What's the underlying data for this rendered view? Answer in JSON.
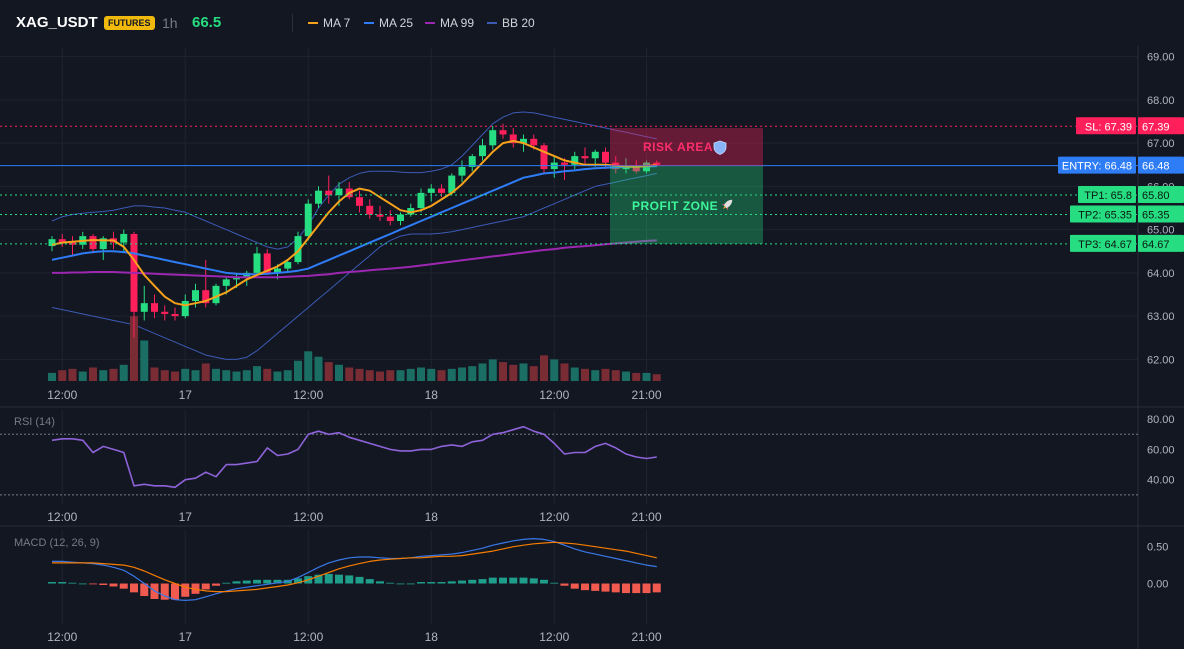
{
  "header": {
    "symbol": "XAG_USDT",
    "market_badge": "FUTURES",
    "interval": "1h",
    "last_price": "66.5",
    "legend": [
      {
        "label": "MA 7",
        "color": "#f7a21b"
      },
      {
        "label": "MA 25",
        "color": "#2e7cf6"
      },
      {
        "label": "MA 99",
        "color": "#9c27b0"
      },
      {
        "label": "BB 20",
        "color": "#3b5bb5"
      }
    ]
  },
  "colors": {
    "up": "#26de81",
    "down": "#ff1f5a",
    "vol_up": "#1a6e63",
    "vol_down": "#7a2c35",
    "ma7": "#f7a21b",
    "ma25": "#2e7cf6",
    "ma99": "#9c27b0",
    "bb": "#3b5bb5",
    "rsi": "#8e63d9",
    "macd": "#3a78e8",
    "signal": "#f57c00",
    "hist_up": "#1f9e8c",
    "hist_down": "#f05a4f",
    "sl": "#ff1f5a",
    "entry": "#2e7cf6",
    "tp": "#26de81"
  },
  "x_axis": {
    "ticks": [
      {
        "label": "12:00",
        "bar": -3
      },
      {
        "label": "17",
        "bar": 9
      },
      {
        "label": "12:00",
        "bar": 21
      },
      {
        "label": "18",
        "bar": 33
      },
      {
        "label": "12:00",
        "bar": 45
      },
      {
        "label": "21:00",
        "bar": 54
      }
    ]
  },
  "price_axis": {
    "ticks": [
      "69.00",
      "68.00",
      "67.00",
      "66.00",
      "65.00",
      "64.00",
      "63.00",
      "62.00"
    ],
    "range": [
      61.5,
      69.2
    ]
  },
  "chart_data": [
    {
      "type": "candlestick",
      "pane": "price",
      "x": [
        -4,
        -3,
        -2,
        -1,
        0,
        1,
        2,
        3,
        4,
        5,
        6,
        7,
        8,
        9,
        10,
        11,
        12,
        13,
        14,
        15,
        16,
        17,
        18,
        19,
        20,
        21,
        22,
        23,
        24,
        25,
        26,
        27,
        28,
        29,
        30,
        31,
        32,
        33,
        34,
        35,
        36,
        37,
        38,
        39,
        40,
        41,
        42,
        43,
        44,
        45,
        46,
        47,
        48,
        49,
        50,
        51,
        52,
        53,
        54,
        55
      ],
      "ohlc": [
        [
          64.62,
          64.85,
          64.5,
          64.78
        ],
        [
          64.78,
          64.9,
          64.6,
          64.7
        ],
        [
          64.7,
          64.85,
          64.4,
          64.65
        ],
        [
          64.65,
          64.95,
          64.55,
          64.85
        ],
        [
          64.85,
          64.9,
          64.45,
          64.55
        ],
        [
          64.55,
          64.85,
          64.3,
          64.8
        ],
        [
          64.8,
          64.95,
          64.55,
          64.7
        ],
        [
          64.7,
          65.0,
          64.5,
          64.9
        ],
        [
          64.9,
          64.95,
          62.5,
          63.1
        ],
        [
          63.1,
          63.7,
          62.9,
          63.3
        ],
        [
          63.3,
          63.5,
          62.95,
          63.1
        ],
        [
          63.1,
          63.25,
          62.9,
          63.05
        ],
        [
          63.05,
          63.2,
          62.9,
          63.0
        ],
        [
          63.0,
          63.5,
          62.95,
          63.35
        ],
        [
          63.35,
          63.75,
          63.2,
          63.6
        ],
        [
          63.6,
          64.3,
          63.2,
          63.3
        ],
        [
          63.3,
          63.75,
          63.25,
          63.7
        ],
        [
          63.7,
          63.9,
          63.5,
          63.85
        ],
        [
          63.85,
          64.0,
          63.65,
          63.9
        ],
        [
          63.9,
          64.05,
          63.7,
          64.0
        ],
        [
          64.0,
          64.6,
          63.95,
          64.45
        ],
        [
          64.45,
          64.55,
          63.95,
          64.0
        ],
        [
          64.0,
          64.2,
          63.85,
          64.1
        ],
        [
          64.1,
          64.3,
          64.0,
          64.25
        ],
        [
          64.25,
          64.95,
          64.2,
          64.85
        ],
        [
          64.85,
          65.7,
          64.75,
          65.6
        ],
        [
          65.6,
          66.0,
          65.5,
          65.9
        ],
        [
          65.9,
          66.25,
          65.6,
          65.8
        ],
        [
          65.8,
          66.1,
          65.55,
          65.95
        ],
        [
          65.95,
          66.1,
          65.7,
          65.75
        ],
        [
          65.75,
          65.9,
          65.4,
          65.55
        ],
        [
          65.55,
          65.7,
          65.25,
          65.35
        ],
        [
          65.35,
          65.55,
          65.2,
          65.3
        ],
        [
          65.3,
          65.45,
          65.1,
          65.2
        ],
        [
          65.2,
          65.4,
          65.1,
          65.35
        ],
        [
          65.35,
          65.6,
          65.3,
          65.5
        ],
        [
          65.5,
          65.95,
          65.4,
          65.85
        ],
        [
          65.85,
          66.05,
          65.65,
          65.95
        ],
        [
          65.95,
          66.05,
          65.75,
          65.85
        ],
        [
          65.85,
          66.3,
          65.8,
          66.25
        ],
        [
          66.25,
          66.6,
          66.1,
          66.45
        ],
        [
          66.45,
          66.75,
          66.35,
          66.7
        ],
        [
          66.7,
          67.1,
          66.6,
          66.95
        ],
        [
          66.95,
          67.4,
          66.85,
          67.3
        ],
        [
          67.3,
          67.45,
          67.1,
          67.2
        ],
        [
          67.2,
          67.35,
          66.9,
          67.0
        ],
        [
          67.0,
          67.2,
          66.8,
          67.1
        ],
        [
          67.1,
          67.2,
          66.85,
          66.95
        ],
        [
          66.95,
          67.0,
          66.3,
          66.4
        ],
        [
          66.4,
          66.7,
          66.2,
          66.55
        ],
        [
          66.55,
          66.65,
          66.15,
          66.5
        ],
        [
          66.5,
          66.8,
          66.4,
          66.7
        ],
        [
          66.7,
          66.9,
          66.5,
          66.65
        ],
        [
          66.65,
          66.85,
          66.45,
          66.8
        ],
        [
          66.8,
          66.9,
          66.4,
          66.55
        ],
        [
          66.55,
          66.7,
          66.3,
          66.4
        ],
        [
          66.4,
          66.65,
          66.3,
          66.45
        ],
        [
          66.45,
          66.6,
          66.3,
          66.35
        ],
        [
          66.35,
          66.6,
          66.3,
          66.55
        ],
        [
          66.55,
          66.6,
          66.45,
          66.5
        ]
      ],
      "volume": [
        0.6,
        0.8,
        0.9,
        0.7,
        1.0,
        0.8,
        0.9,
        1.2,
        4.8,
        3.0,
        1.0,
        0.8,
        0.7,
        0.9,
        0.8,
        1.3,
        0.9,
        0.8,
        0.7,
        0.8,
        1.1,
        0.9,
        0.7,
        0.8,
        1.5,
        2.2,
        1.8,
        1.4,
        1.2,
        1.0,
        0.9,
        0.8,
        0.7,
        0.8,
        0.8,
        0.9,
        1.0,
        0.9,
        0.8,
        0.9,
        1.0,
        1.1,
        1.3,
        1.6,
        1.4,
        1.2,
        1.3,
        1.1,
        1.9,
        1.6,
        1.3,
        1.0,
        0.9,
        0.8,
        0.9,
        0.8,
        0.7,
        0.6,
        0.6,
        0.5
      ],
      "ma7": [
        64.65,
        64.7,
        64.72,
        64.74,
        64.76,
        64.75,
        64.75,
        64.6,
        64.3,
        63.95,
        63.7,
        63.45,
        63.3,
        63.25,
        63.3,
        63.35,
        63.45,
        63.55,
        63.7,
        63.85,
        63.95,
        64.05,
        64.15,
        64.3,
        64.5,
        64.8,
        65.1,
        65.4,
        65.65,
        65.85,
        65.95,
        65.9,
        65.75,
        65.6,
        65.45,
        65.4,
        65.45,
        65.55,
        65.7,
        65.85,
        66.05,
        66.3,
        66.55,
        66.8,
        67.0,
        67.05,
        67.0,
        66.9,
        66.8,
        66.7,
        66.6,
        66.55,
        66.5,
        66.5,
        66.5,
        66.48,
        66.46,
        66.45,
        66.47,
        66.5
      ],
      "ma25": [
        64.3,
        64.35,
        64.4,
        64.45,
        64.48,
        64.5,
        64.5,
        64.48,
        64.45,
        64.4,
        64.35,
        64.3,
        64.25,
        64.2,
        64.15,
        64.1,
        64.05,
        64.0,
        63.98,
        63.97,
        63.97,
        63.98,
        64.0,
        64.02,
        64.05,
        64.1,
        64.2,
        64.3,
        64.4,
        64.5,
        64.6,
        64.7,
        64.8,
        64.9,
        65.0,
        65.1,
        65.2,
        65.3,
        65.4,
        65.5,
        65.6,
        65.7,
        65.8,
        65.9,
        66.0,
        66.1,
        66.2,
        66.25,
        66.3,
        66.32,
        66.35,
        66.37,
        66.4,
        66.42,
        66.43,
        66.44,
        66.45,
        66.46,
        66.46,
        66.47
      ],
      "ma99": [
        64.0,
        64.0,
        64.01,
        64.01,
        64.02,
        64.02,
        64.02,
        64.01,
        64.0,
        63.99,
        63.98,
        63.97,
        63.96,
        63.95,
        63.94,
        63.93,
        63.92,
        63.91,
        63.9,
        63.9,
        63.9,
        63.9,
        63.9,
        63.91,
        63.92,
        63.93,
        63.95,
        63.97,
        64.0,
        64.02,
        64.04,
        64.06,
        64.08,
        64.1,
        64.12,
        64.14,
        64.17,
        64.2,
        64.23,
        64.26,
        64.29,
        64.32,
        64.35,
        64.38,
        64.41,
        64.44,
        64.47,
        64.5,
        64.53,
        64.55,
        64.58,
        64.6,
        64.62,
        64.64,
        64.66,
        64.68,
        64.7,
        64.72,
        64.74,
        64.75
      ],
      "bb_upper": [
        65.2,
        65.3,
        65.35,
        65.38,
        65.4,
        65.42,
        65.45,
        65.5,
        65.55,
        65.55,
        65.52,
        65.5,
        65.45,
        65.4,
        65.3,
        65.2,
        65.1,
        65.0,
        64.9,
        64.8,
        64.7,
        64.6,
        64.55,
        64.6,
        64.8,
        65.1,
        65.5,
        65.8,
        66.05,
        66.2,
        66.3,
        66.35,
        66.35,
        66.35,
        66.33,
        66.32,
        66.32,
        66.35,
        66.4,
        66.5,
        66.7,
        66.95,
        67.2,
        67.45,
        67.6,
        67.7,
        67.72,
        67.7,
        67.65,
        67.6,
        67.55,
        67.5,
        67.45,
        67.4,
        67.35,
        67.3,
        67.25,
        67.2,
        67.15,
        67.1
      ],
      "bb_lower": [
        63.2,
        63.15,
        63.1,
        63.05,
        63.0,
        62.95,
        62.9,
        62.85,
        62.8,
        62.7,
        62.6,
        62.5,
        62.4,
        62.3,
        62.2,
        62.1,
        62.05,
        62.0,
        62.0,
        62.05,
        62.2,
        62.4,
        62.6,
        62.8,
        63.0,
        63.2,
        63.4,
        63.6,
        63.8,
        64.0,
        64.2,
        64.4,
        64.6,
        64.75,
        64.85,
        64.9,
        64.9,
        64.9,
        64.92,
        64.95,
        65.0,
        65.05,
        65.1,
        65.15,
        65.2,
        65.25,
        65.3,
        65.4,
        65.5,
        65.6,
        65.7,
        65.8,
        65.9,
        66.0,
        66.05,
        66.1,
        66.15,
        66.2,
        66.25,
        66.3
      ]
    },
    {
      "type": "line",
      "pane": "rsi",
      "title": "RSI (14)",
      "y_ticks": [
        "80.00",
        "60.00",
        "40.00"
      ],
      "levels": [
        70,
        30
      ],
      "ylim": [
        24,
        86
      ],
      "x_start": -4,
      "values": [
        66,
        67,
        67,
        66,
        58,
        62,
        60,
        58,
        36,
        37,
        36,
        36,
        35,
        40,
        41,
        45,
        42,
        50,
        50,
        51,
        52,
        61,
        56,
        57,
        60,
        70,
        72,
        70,
        71,
        68,
        66,
        64,
        62,
        60,
        59,
        59,
        60,
        60,
        62,
        63,
        62,
        65,
        66,
        70,
        71,
        73,
        75,
        72,
        70,
        64,
        57,
        58,
        58,
        62,
        64,
        61,
        57,
        55,
        54,
        55
      ]
    },
    {
      "type": "line",
      "pane": "macd",
      "title": "MACD (12, 26, 9)",
      "y_ticks": [
        "0.50",
        "0.00"
      ],
      "ylim": [
        -0.55,
        0.7
      ],
      "x_start": -4,
      "macd": [
        0.3,
        0.3,
        0.29,
        0.28,
        0.27,
        0.25,
        0.22,
        0.18,
        0.1,
        0.0,
        -0.1,
        -0.17,
        -0.22,
        -0.23,
        -0.22,
        -0.18,
        -0.14,
        -0.1,
        -0.07,
        -0.05,
        -0.03,
        -0.01,
        0.01,
        0.03,
        0.08,
        0.15,
        0.22,
        0.28,
        0.32,
        0.35,
        0.36,
        0.36,
        0.35,
        0.34,
        0.34,
        0.35,
        0.37,
        0.38,
        0.39,
        0.4,
        0.42,
        0.45,
        0.48,
        0.52,
        0.55,
        0.58,
        0.6,
        0.61,
        0.6,
        0.57,
        0.52,
        0.47,
        0.43,
        0.4,
        0.37,
        0.34,
        0.31,
        0.28,
        0.25,
        0.23
      ],
      "signal": [
        0.28,
        0.28,
        0.28,
        0.28,
        0.28,
        0.27,
        0.26,
        0.25,
        0.22,
        0.17,
        0.11,
        0.05,
        0.0,
        -0.05,
        -0.08,
        -0.1,
        -0.11,
        -0.11,
        -0.1,
        -0.09,
        -0.08,
        -0.06,
        -0.04,
        -0.02,
        0.01,
        0.05,
        0.1,
        0.15,
        0.2,
        0.24,
        0.27,
        0.3,
        0.32,
        0.33,
        0.34,
        0.35,
        0.35,
        0.36,
        0.37,
        0.37,
        0.38,
        0.4,
        0.42,
        0.44,
        0.47,
        0.5,
        0.52,
        0.54,
        0.55,
        0.56,
        0.55,
        0.54,
        0.52,
        0.5,
        0.48,
        0.46,
        0.44,
        0.41,
        0.38,
        0.35
      ],
      "histogram": [
        0.02,
        0.02,
        0.01,
        0.0,
        -0.01,
        -0.02,
        -0.04,
        -0.07,
        -0.12,
        -0.17,
        -0.21,
        -0.22,
        -0.22,
        -0.18,
        -0.14,
        -0.08,
        -0.03,
        0.01,
        0.03,
        0.04,
        0.05,
        0.05,
        0.05,
        0.05,
        0.07,
        0.1,
        0.12,
        0.13,
        0.12,
        0.11,
        0.09,
        0.06,
        0.03,
        0.01,
        0.0,
        0.0,
        0.02,
        0.02,
        0.02,
        0.03,
        0.04,
        0.05,
        0.06,
        0.08,
        0.08,
        0.08,
        0.08,
        0.07,
        0.05,
        0.01,
        -0.03,
        -0.07,
        -0.09,
        -0.1,
        -0.11,
        -0.12,
        -0.13,
        -0.13,
        -0.13,
        -0.12
      ]
    }
  ],
  "trade": {
    "sl": {
      "label": "SL: 67.39",
      "value_label": "67.39",
      "price": 67.39
    },
    "entry": {
      "label": "ENTRY: 66.48",
      "value_label": "66.48",
      "price": 66.48
    },
    "tp1": {
      "label": "TP1: 65.8",
      "value_label": "65.80",
      "price": 65.8
    },
    "tp2": {
      "label": "TP2: 65.35",
      "value_label": "65.35",
      "price": 65.35
    },
    "tp3": {
      "label": "TP3: 64.67",
      "value_label": "64.67",
      "price": 64.67
    },
    "risk_label": "RISK AREA",
    "profit_label": "PROFIT ZONE"
  }
}
